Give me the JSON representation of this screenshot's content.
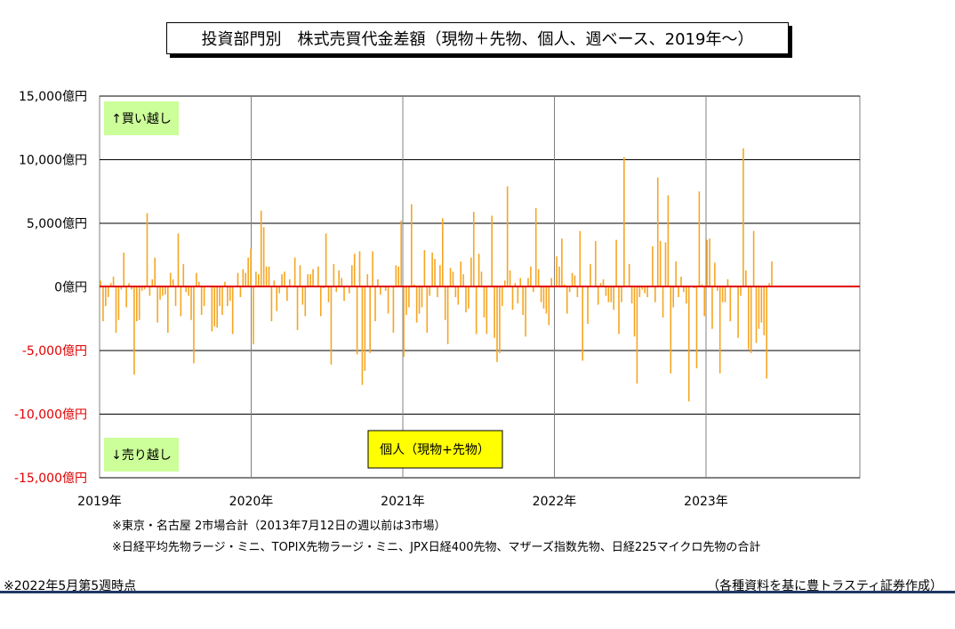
{
  "title": "投資部門別　株式売買代金差額（現物＋先物、個人、週ベース、2019年～）",
  "notes": [
    "※東京・名古屋 2市場合計（2013年7月12日の週以前は3市場）",
    "※日経平均先物ラージ・ミニ、TOPIX先物ラージ・ミニ、JPX日経400先物、マザーズ指数先物、日経225マイクロ先物の合計"
  ],
  "footer_left": "※2022年5月第5週時点",
  "footer_right": "（各種資料を基に豊トラスティ証券作成）",
  "colors": {
    "bar": "#f5a623",
    "zero_line": "#e00000",
    "label_box": "#ccff99",
    "series_box": "#ffff00",
    "negative_tick": "#e00000"
  },
  "chart_data": {
    "type": "bar",
    "title": "投資部門別　株式売買代金差額（現物＋先物、個人、週ベース、2019年～）",
    "series": [
      {
        "name": "個人（現物+先物）",
        "values": [
          500,
          -2700,
          -1500,
          -800,
          300,
          800,
          -3600,
          -2600,
          -200,
          2700,
          -1600,
          300,
          -200,
          -6900,
          -2700,
          -2600,
          -300,
          -200,
          5800,
          -700,
          600,
          2300,
          -2800,
          -1000,
          -700,
          -600,
          -3600,
          1100,
          600,
          -1500,
          4200,
          -2300,
          1800,
          -400,
          -700,
          -2600,
          -6000,
          1100,
          400,
          -2200,
          -1500,
          0,
          0,
          -3500,
          -3100,
          -3200,
          -1500,
          -2200,
          400,
          -1500,
          -1100,
          -3700,
          0,
          1100,
          -800,
          1400,
          1100,
          2300,
          3000,
          -4500,
          1200,
          1000,
          6000,
          4700,
          1600,
          1600,
          -2700,
          500,
          -1900,
          -500,
          1000,
          1200,
          -1100,
          600,
          0,
          2300,
          -3400,
          1700,
          -1400,
          -2300,
          1000,
          1000,
          1400,
          0,
          1600,
          -2300,
          -100,
          4200,
          -1200,
          -6100,
          1800,
          -400,
          1300,
          700,
          -1100,
          0,
          -500,
          1700,
          2600,
          -5300,
          2800,
          -7700,
          -6600,
          1000,
          -5200,
          2800,
          -2700,
          600,
          -600,
          0,
          -300,
          -2100,
          0,
          -3600,
          1700,
          1600,
          5200,
          -5500,
          -2200,
          -1600,
          6500,
          200,
          -2800,
          -2100,
          -1600,
          2900,
          -3600,
          -700,
          2700,
          2200,
          -800,
          1700,
          5400,
          -2600,
          -4500,
          1500,
          1200,
          -800,
          -1400,
          2000,
          1000,
          -2000,
          -1700,
          2300,
          5900,
          -3700,
          2600,
          1200,
          -2400,
          -3700,
          0,
          5600,
          -4000,
          -5900,
          -5200,
          -1500,
          500,
          7900,
          1300,
          -1800,
          300,
          -1300,
          700,
          -2200,
          -3900,
          700,
          1600,
          -400,
          6200,
          1400,
          -1200,
          -1700,
          -2100,
          -3000,
          700,
          0,
          2400,
          1600,
          3800,
          200,
          -2100,
          -400,
          1100,
          900,
          -800,
          4400,
          -5800,
          0,
          -2900,
          1800,
          0,
          3600,
          -1400,
          300,
          600,
          -700,
          -1200,
          -1200,
          -1800,
          3700,
          -3700,
          -1200,
          10200,
          0,
          1800,
          -1300,
          -3900,
          -7600,
          -800,
          -200,
          -500,
          -800,
          0,
          3200,
          -1200,
          8600,
          3600,
          -2400,
          3500,
          7200,
          -6800,
          -1600,
          2000,
          -800,
          800,
          -400,
          -1300,
          -9000,
          0,
          -100,
          -6400,
          7500,
          200,
          -2300,
          3700,
          3800,
          -3300,
          1900,
          -300,
          -6800,
          -1200,
          -1200,
          600,
          -2700,
          0,
          0,
          -4000,
          -700,
          10900,
          1300,
          -4900,
          -5200,
          4400,
          -4400,
          -3300,
          -2800,
          -3800,
          -7200,
          300,
          2000
        ]
      }
    ],
    "x_tick_labels": [
      "2019年",
      "2020年",
      "2021年",
      "2022年",
      "2023年"
    ],
    "ylim": [
      -15000,
      15000
    ],
    "y_ticks": [
      15000,
      10000,
      5000,
      0,
      -5000,
      -10000,
      -15000
    ],
    "y_tick_labels": [
      "15,000億円",
      "10,000億円",
      "5,000億円",
      "0億円",
      "-5,000億円",
      "-10,000億円",
      "-15,000億円"
    ],
    "annotations": {
      "buy": "↑買い越し",
      "sell": "↓売り越し",
      "series_label": "個人（現物+先物）"
    },
    "grid": true
  }
}
